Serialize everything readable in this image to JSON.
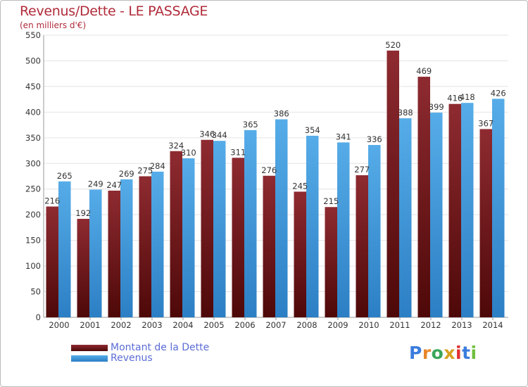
{
  "title": "Revenus/Dette - LE PASSAGE",
  "subtitle": "(en milliers d'€)",
  "logo_text": "Proxiti",
  "colors": {
    "dette": "#7a1f24",
    "revenus": "#4aa3e3",
    "title": "#b02b3a",
    "legend_text": "#5b6cd6"
  },
  "chart_data": {
    "type": "bar",
    "title": "Revenus/Dette - LE PASSAGE",
    "subtitle": "(en milliers d'€)",
    "categories": [
      "2000",
      "2001",
      "2002",
      "2003",
      "2004",
      "2005",
      "2006",
      "2007",
      "2008",
      "2009",
      "2010",
      "2011",
      "2012",
      "2013",
      "2014"
    ],
    "series": [
      {
        "name": "Montant de la Dette",
        "values": [
          216,
          192,
          247,
          275,
          324,
          346,
          311,
          276,
          245,
          215,
          277,
          520,
          469,
          416,
          367
        ]
      },
      {
        "name": "Revenus",
        "values": [
          265,
          249,
          269,
          284,
          310,
          344,
          365,
          386,
          354,
          341,
          336,
          388,
          399,
          418,
          426
        ]
      }
    ],
    "ylim": [
      0,
      550
    ],
    "yticks": [
      0,
      50,
      100,
      150,
      200,
      250,
      300,
      350,
      400,
      450,
      500,
      550
    ],
    "grid": true,
    "legend": "bottom-left"
  }
}
